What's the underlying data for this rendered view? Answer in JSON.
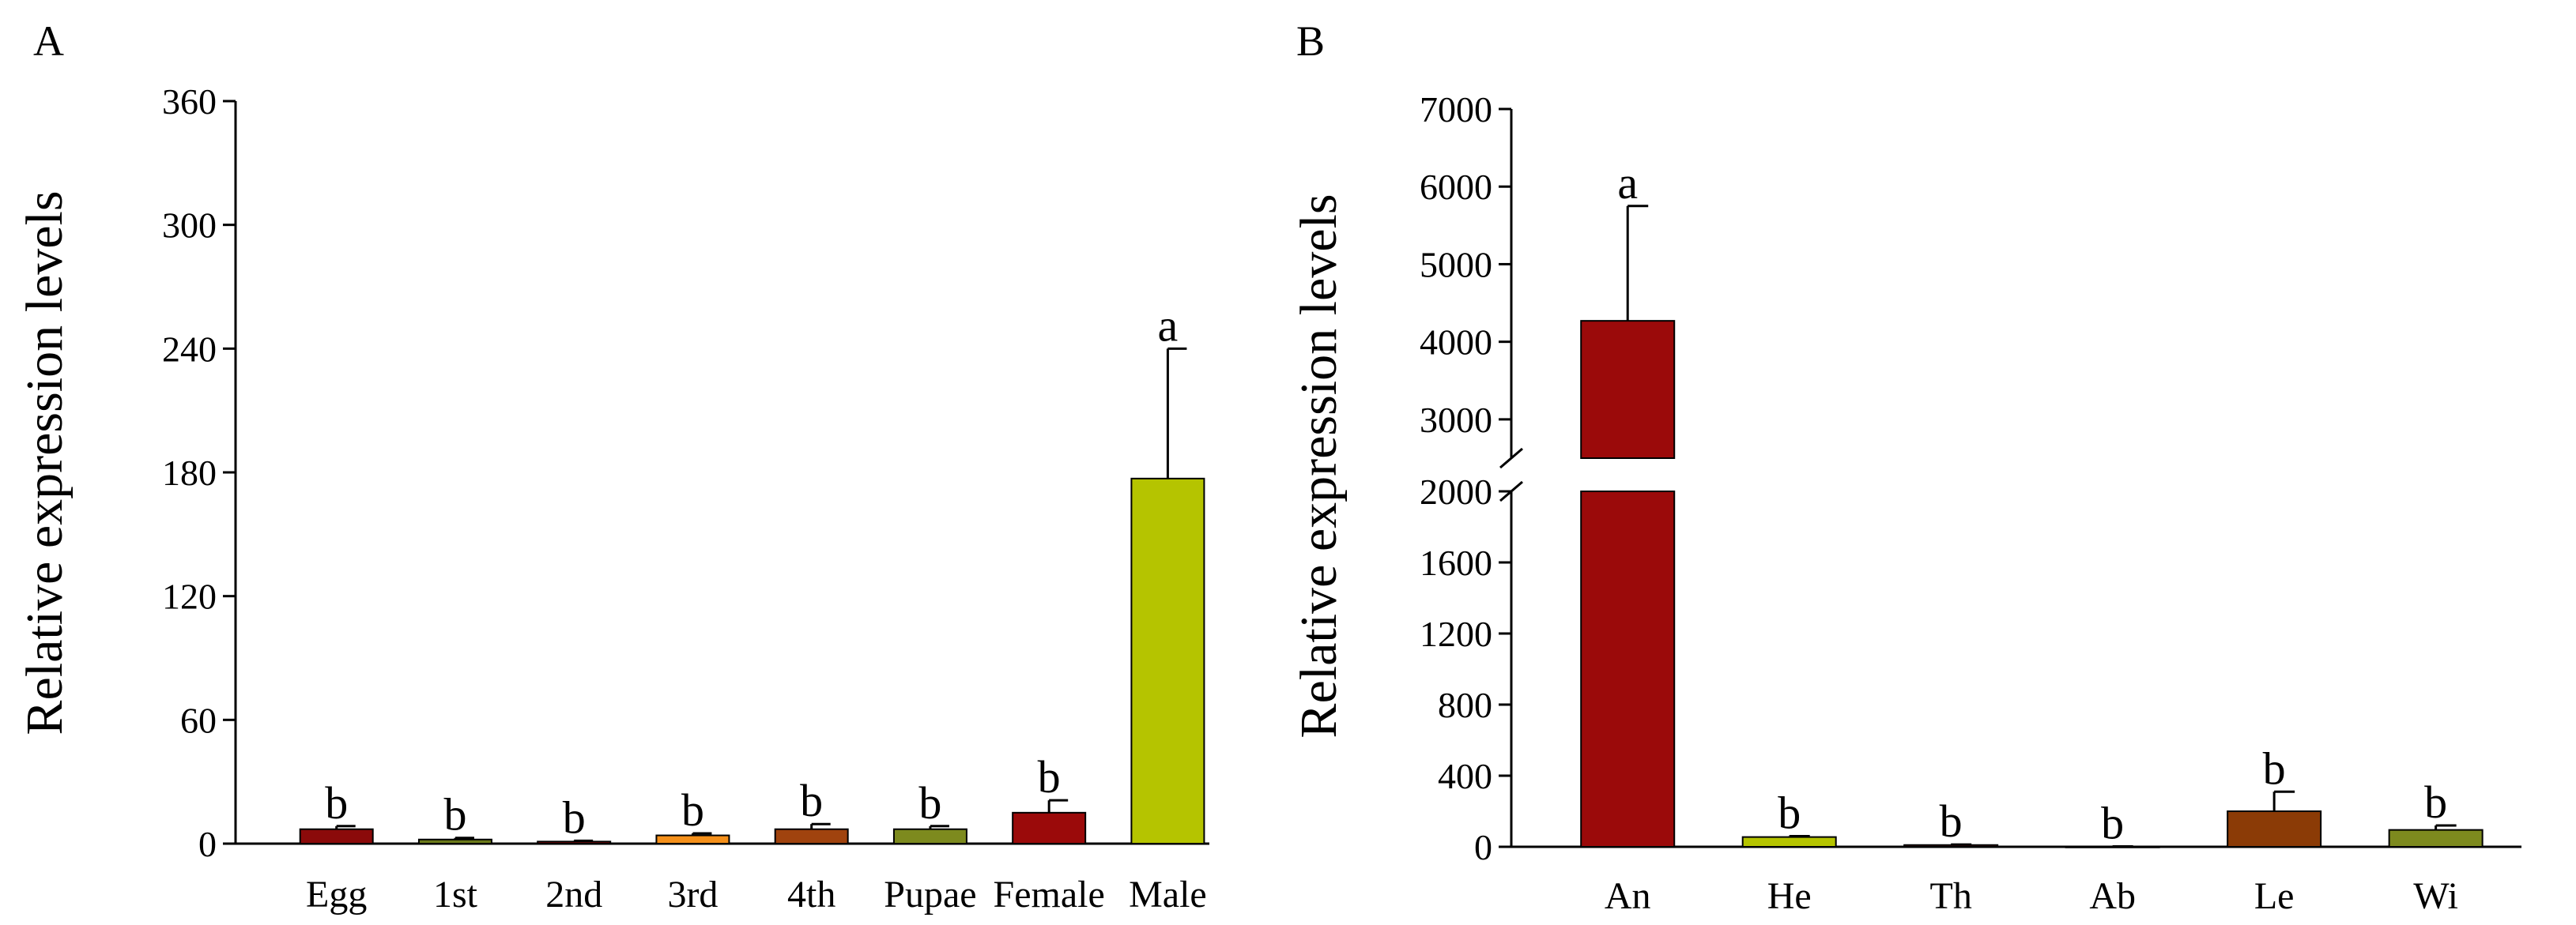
{
  "chart_data": [
    {
      "type": "bar",
      "panel_label": "A",
      "ylabel": "Relative expression levels",
      "xlabel": "",
      "ylim": [
        0,
        360
      ],
      "yticks": [
        0,
        60,
        120,
        180,
        240,
        300,
        360
      ],
      "categories": [
        "Egg",
        "1st",
        "2nd",
        "3rd",
        "4th",
        "Pupae",
        "Female",
        "Male"
      ],
      "values": [
        7,
        2,
        1,
        4,
        7,
        7,
        15,
        177
      ],
      "errors": [
        1.5,
        0.8,
        0.4,
        1,
        2.5,
        1.5,
        6,
        63
      ],
      "letters": [
        "b",
        "b",
        "b",
        "b",
        "b",
        "b",
        "b",
        "a"
      ],
      "colors": [
        "#8b0a0a",
        "#6b7a1a",
        "#8b0a0a",
        "#f5901a",
        "#a0430e",
        "#7d8a1e",
        "#9b0a0a",
        "#b5c400"
      ],
      "grid": false,
      "legend": "none"
    },
    {
      "type": "bar",
      "panel_label": "B",
      "ylabel": "Relative expression levels",
      "xlabel": "",
      "broken_axis": true,
      "ylim_lower": [
        0,
        2000
      ],
      "ylim_upper": [
        2500,
        7000
      ],
      "yticks_lower": [
        0,
        400,
        800,
        1200,
        1600,
        2000
      ],
      "yticks_upper": [
        3000,
        4000,
        5000,
        6000,
        7000
      ],
      "categories": [
        "An",
        "He",
        "Th",
        "Ab",
        "Le",
        "Wi"
      ],
      "values": [
        4270,
        55,
        10,
        1,
        200,
        95
      ],
      "errors": [
        1480,
        5,
        3,
        1,
        110,
        25
      ],
      "letters": [
        "a",
        "b",
        "b",
        "b",
        "b",
        "b"
      ],
      "colors": [
        "#9b0a0a",
        "#b5c400",
        "#8b0a0a",
        "#6b7a1a",
        "#8b3b06",
        "#7d8a1e"
      ],
      "grid": false,
      "legend": "none"
    }
  ]
}
